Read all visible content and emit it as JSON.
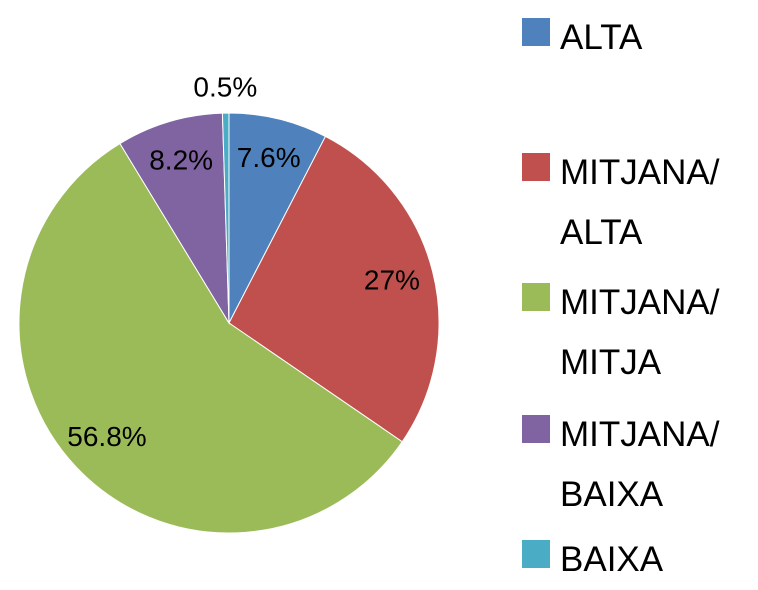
{
  "chart_data": {
    "type": "pie",
    "categories": [
      "ALTA",
      "MITJANA/ ALTA",
      "MITJANA/ MITJA",
      "MITJANA/ BAIXA",
      "BAIXA"
    ],
    "values": [
      7.6,
      27,
      56.8,
      8.2,
      0.5
    ],
    "value_labels": [
      "7.6%",
      "27%",
      "56.8%",
      "8.2%",
      "0.5%"
    ],
    "colors": [
      "#4f81bd",
      "#c0504d",
      "#9bbb59",
      "#8064a2",
      "#4bacc6"
    ],
    "legend": "right"
  }
}
